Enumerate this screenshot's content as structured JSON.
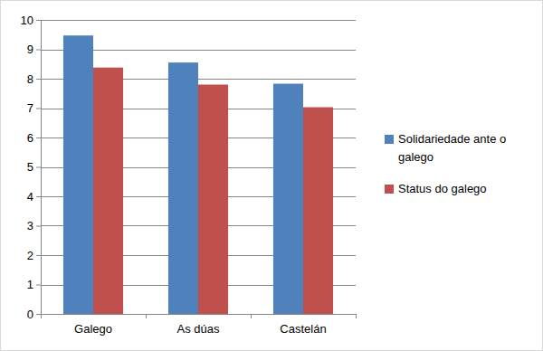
{
  "chart_data": {
    "type": "bar",
    "categories": [
      "Galego",
      "As dúas",
      "Castelán"
    ],
    "series": [
      {
        "name": "Solidariedade ante o galego",
        "color": "#4f81bd",
        "values": [
          9.47,
          8.55,
          7.83
        ]
      },
      {
        "name": "Status do galego",
        "color": "#c0504d",
        "values": [
          8.38,
          7.8,
          7.03
        ]
      }
    ],
    "ylim": [
      0,
      10
    ],
    "yticks": [
      0,
      1,
      2,
      3,
      4,
      5,
      6,
      7,
      8,
      9,
      10
    ],
    "grid": true,
    "legend": "right"
  }
}
